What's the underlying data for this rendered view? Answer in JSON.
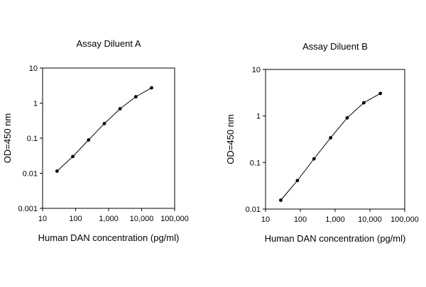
{
  "chart_data": [
    {
      "type": "line",
      "title": "Assay Diluent A",
      "xlabel": "Human DAN concentration (pg/ml)",
      "ylabel": "OD=450 nm",
      "x_scale": "log",
      "y_scale": "log",
      "xlim": [
        10,
        100000
      ],
      "ylim": [
        0.001,
        10
      ],
      "x_tick_values": [
        10,
        100,
        1000,
        10000,
        100000
      ],
      "x_tick_labels": [
        "10",
        "100",
        "1,000",
        "10,000",
        "100,000"
      ],
      "y_tick_values": [
        0.001,
        0.01,
        0.1,
        1,
        10
      ],
      "y_tick_labels": [
        "0.001",
        "0.01",
        "0.1",
        "1",
        "10"
      ],
      "grid": false,
      "legend": "none",
      "series": [
        {
          "color": "#000000",
          "x": [
            27.4,
            82.3,
            247,
            741,
            2222,
            6667,
            20000
          ],
          "y": [
            0.0115,
            0.03,
            0.089,
            0.26,
            0.69,
            1.52,
            2.72
          ]
        }
      ]
    },
    {
      "type": "line",
      "title": "Assay Diluent B",
      "xlabel": "Human DAN concentration (pg/ml)",
      "ylabel": "OD=450 nm",
      "x_scale": "log",
      "y_scale": "log",
      "xlim": [
        10,
        100000
      ],
      "ylim": [
        0.01,
        10
      ],
      "x_tick_values": [
        10,
        100,
        1000,
        10000,
        100000
      ],
      "x_tick_labels": [
        "10",
        "100",
        "1,000",
        "10,000",
        "100,000"
      ],
      "y_tick_values": [
        0.01,
        0.1,
        1,
        10
      ],
      "y_tick_labels": [
        "0.01",
        "0.1",
        "1",
        "10"
      ],
      "grid": false,
      "legend": "none",
      "series": [
        {
          "color": "#000000",
          "x": [
            27.4,
            82.3,
            247,
            741,
            2222,
            6667,
            20000
          ],
          "y": [
            0.0155,
            0.041,
            0.12,
            0.34,
            0.91,
            1.92,
            3.05
          ]
        }
      ]
    }
  ]
}
